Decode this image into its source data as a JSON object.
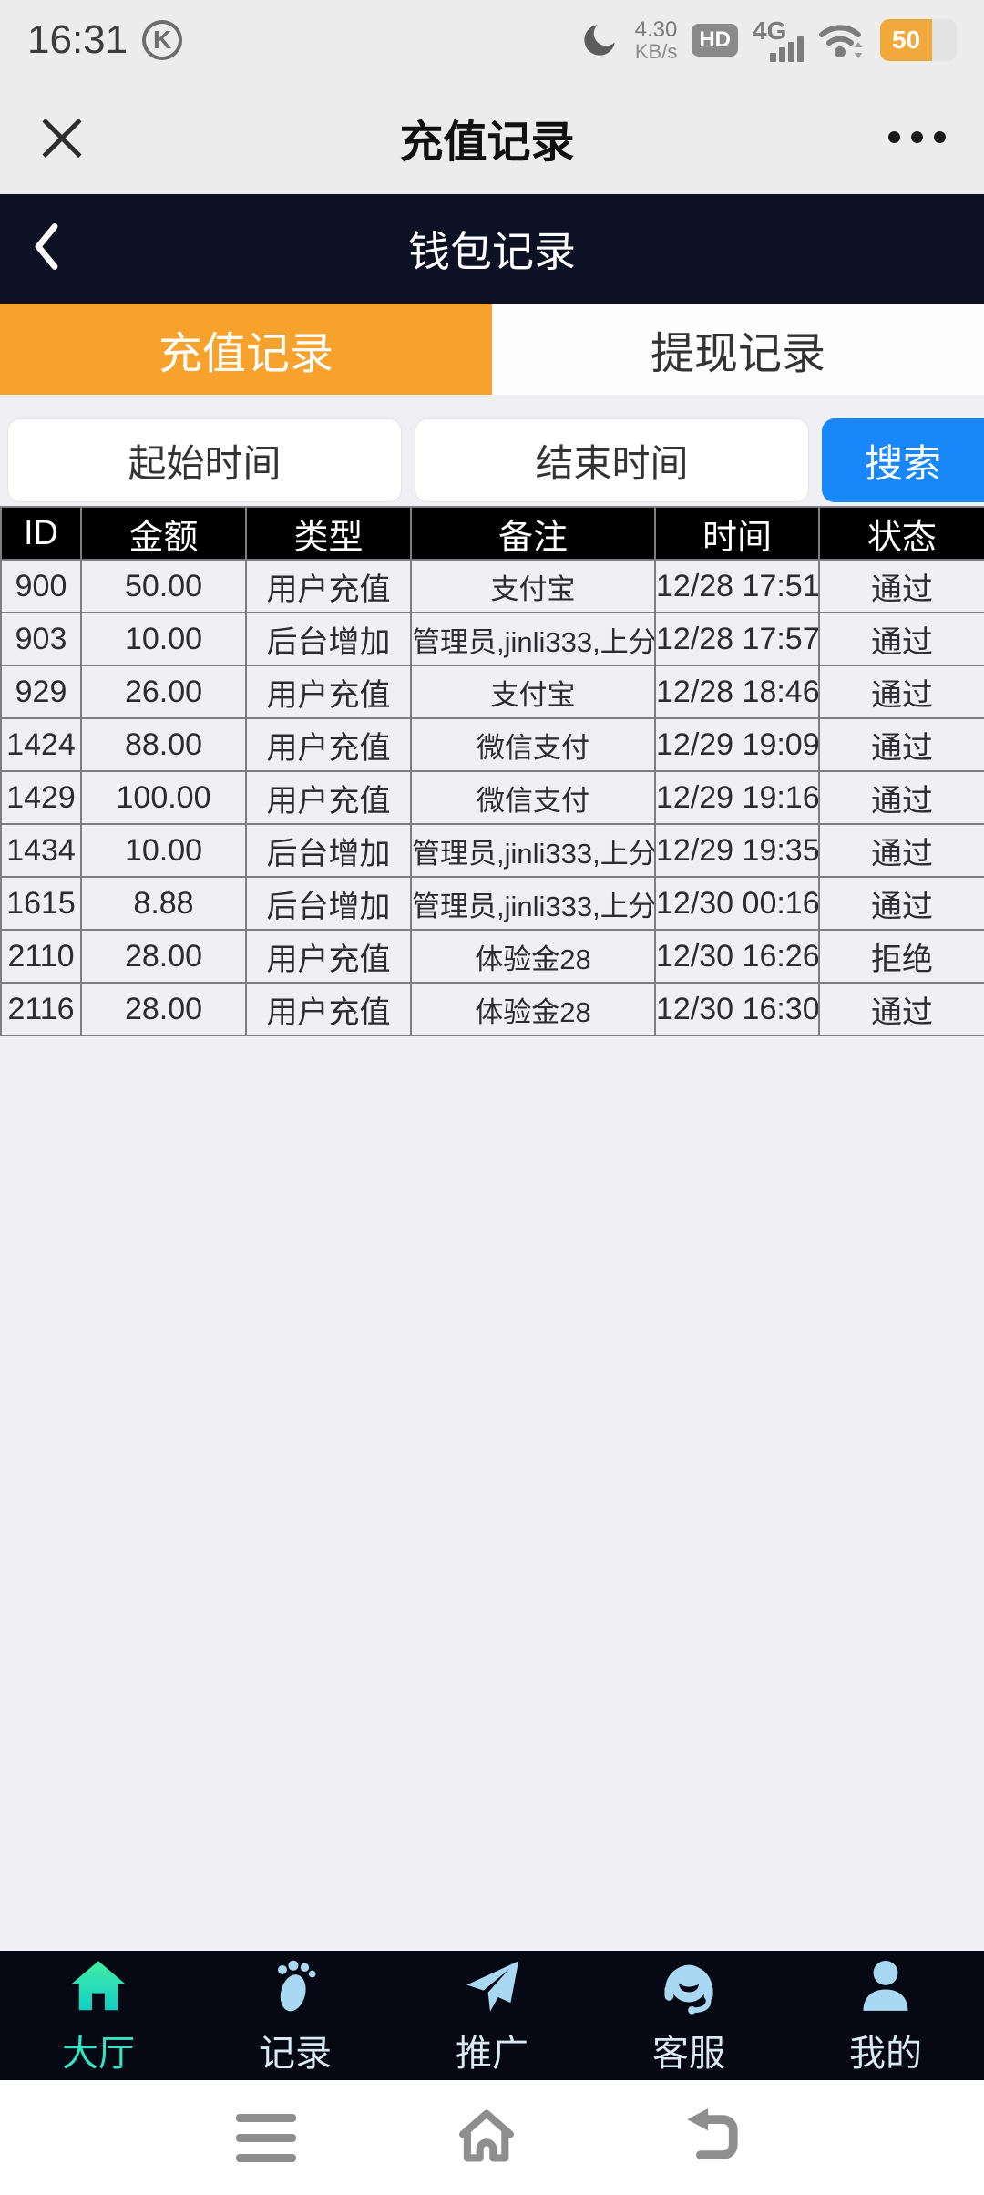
{
  "status_bar": {
    "time": "16:31",
    "k_icon": "K",
    "speed_value": "4.30",
    "speed_unit": "KB/s",
    "hd_label": "HD",
    "network_label": "4G",
    "battery_percent": "50"
  },
  "web_header": {
    "title": "充值记录"
  },
  "wallet_header": {
    "title": "钱包记录"
  },
  "tabs": [
    {
      "label": "充值记录",
      "active": true
    },
    {
      "label": "提现记录",
      "active": false
    }
  ],
  "filters": {
    "start_label": "起始时间",
    "end_label": "结束时间",
    "search_label": "搜索"
  },
  "table": {
    "headers": [
      "ID",
      "金额",
      "类型",
      "备注",
      "时间",
      "状态"
    ],
    "rows": [
      [
        "900",
        "50.00",
        "用户充值",
        "支付宝",
        "12/28 17:51",
        "通过"
      ],
      [
        "903",
        "10.00",
        "后台增加",
        "管理员,jinli333,上分",
        "12/28 17:57",
        "通过"
      ],
      [
        "929",
        "26.00",
        "用户充值",
        "支付宝",
        "12/28 18:46",
        "通过"
      ],
      [
        "1424",
        "88.00",
        "用户充值",
        "微信支付",
        "12/29 19:09",
        "通过"
      ],
      [
        "1429",
        "100.00",
        "用户充值",
        "微信支付",
        "12/29 19:16",
        "通过"
      ],
      [
        "1434",
        "10.00",
        "后台增加",
        "管理员,jinli333,上分",
        "12/29 19:35",
        "通过"
      ],
      [
        "1615",
        "8.88",
        "后台增加",
        "管理员,jinli333,上分",
        "12/30 00:16",
        "通过"
      ],
      [
        "2110",
        "28.00",
        "用户充值",
        "体验金28",
        "12/30 16:26",
        "拒绝"
      ],
      [
        "2116",
        "28.00",
        "用户充值",
        "体验金28",
        "12/30 16:30",
        "通过"
      ]
    ]
  },
  "bottom_nav": [
    {
      "label": "大厅",
      "active": true
    },
    {
      "label": "记录",
      "active": false
    },
    {
      "label": "推广",
      "active": false
    },
    {
      "label": "客服",
      "active": false
    },
    {
      "label": "我的",
      "active": false
    }
  ],
  "colors": {
    "accent_orange": "#f8a22e",
    "accent_blue": "#1887fa",
    "navy_header": "#0d1124",
    "navy_footer": "#060913",
    "active_teal": "#35e2c3",
    "icon_blue": "#a9d9f2",
    "battery_orange": "#f2a93b"
  }
}
